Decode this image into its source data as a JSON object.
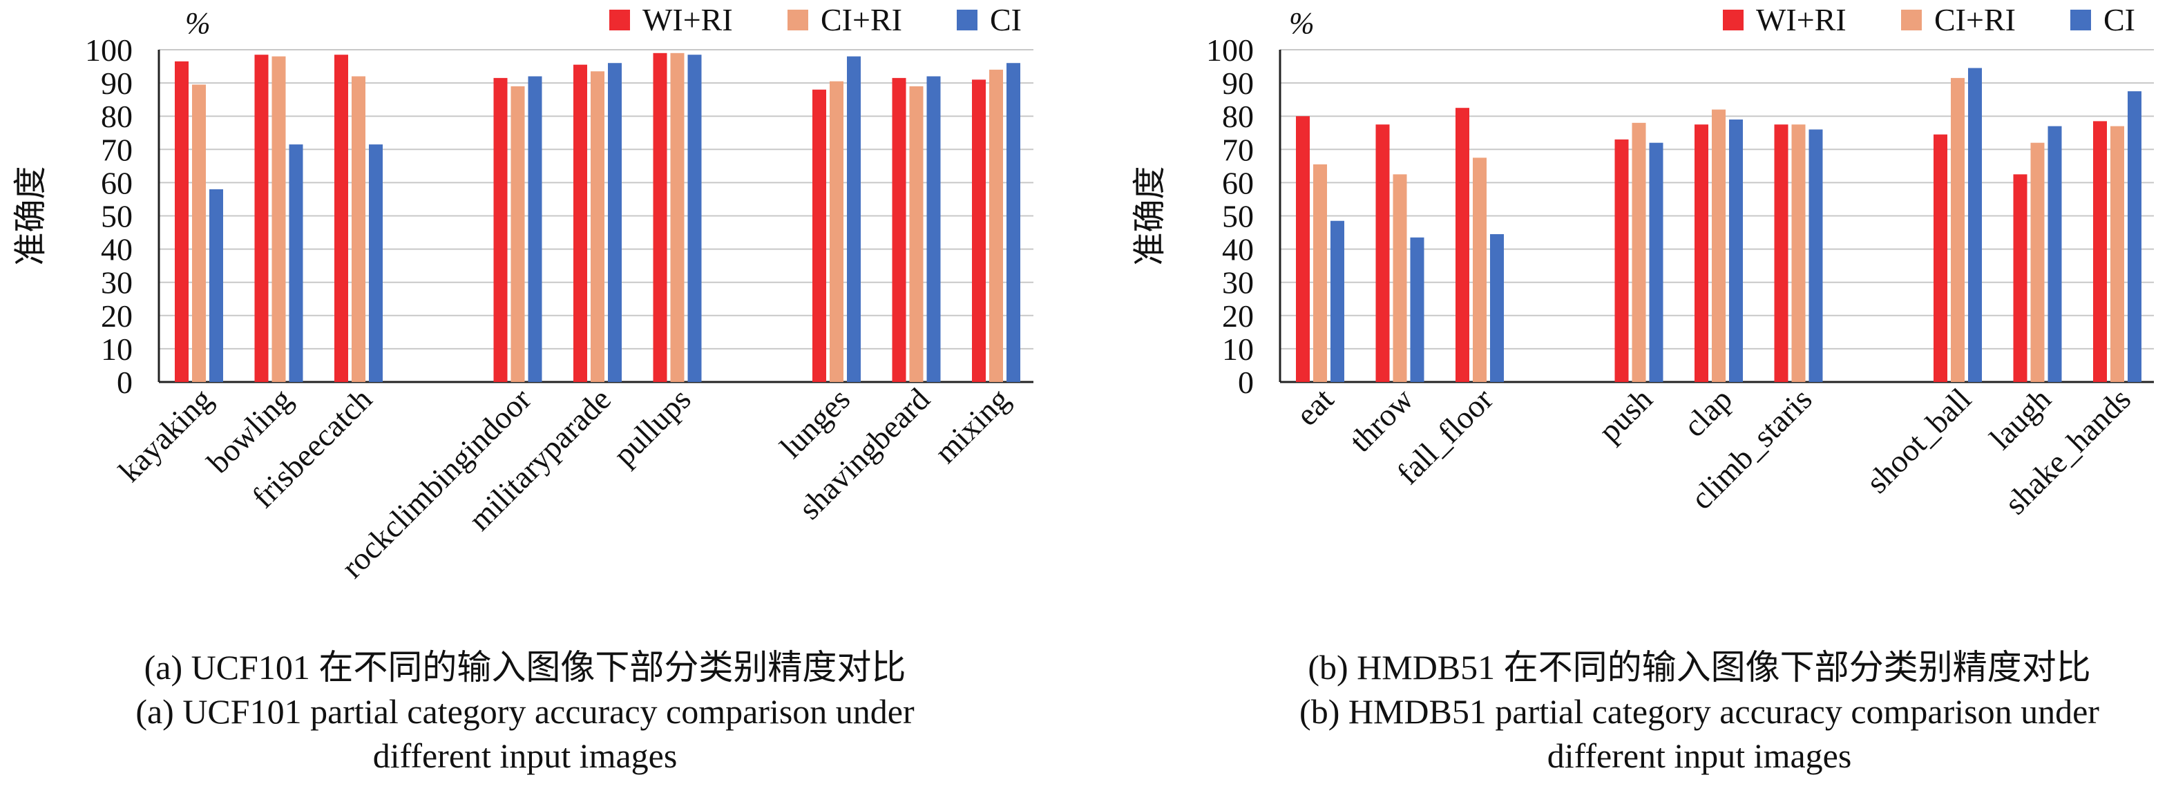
{
  "legend": {
    "entries": [
      {
        "name": "WI+RI",
        "color": "#ee2a2f"
      },
      {
        "name": "CI+RI",
        "color": "#eea17c"
      },
      {
        "name": "CI",
        "color": "#4470c0"
      }
    ],
    "placement": "top-right"
  },
  "axis_text": {
    "unit": "%",
    "ylabel": "准确度"
  },
  "chart_data": [
    {
      "type": "bar",
      "categories": [
        "kayaking",
        "bowling",
        "frisbeecatch",
        "rockclimbingindoor",
        "militaryparade",
        "pullups",
        "lunges",
        "shavingbeard",
        "mixing"
      ],
      "groups": [
        3,
        3,
        3
      ],
      "series": [
        {
          "name": "WI+RI",
          "values": [
            96.5,
            98.5,
            98.5,
            91.5,
            95.5,
            99,
            88,
            91.5,
            91
          ]
        },
        {
          "name": "CI+RI",
          "values": [
            89.5,
            98,
            92,
            89,
            93.5,
            99,
            90.5,
            89,
            94
          ]
        },
        {
          "name": "CI",
          "values": [
            58,
            71.5,
            71.5,
            92,
            96,
            98.5,
            98,
            92,
            96
          ]
        }
      ],
      "ylim": [
        0,
        100
      ],
      "yticks": [
        0,
        10,
        20,
        30,
        40,
        50,
        60,
        70,
        80,
        90,
        100
      ],
      "ylabel": "准确度",
      "unit": "%",
      "grid": true,
      "caption_lines": [
        "(a) UCF101 在不同的输入图像下部分类别精度对比",
        "(a) UCF101 partial category accuracy comparison under",
        "different input images"
      ]
    },
    {
      "type": "bar",
      "categories": [
        "eat",
        "throw",
        "fall_floor",
        "push",
        "clap",
        "climb_staris",
        "shoot_ball",
        "laugh",
        "shake_hands"
      ],
      "groups": [
        3,
        3,
        3
      ],
      "series": [
        {
          "name": "WI+RI",
          "values": [
            80,
            77.5,
            82.5,
            73,
            77.5,
            77.5,
            74.5,
            62.5,
            78.5
          ]
        },
        {
          "name": "CI+RI",
          "values": [
            65.5,
            62.5,
            67.5,
            78,
            82,
            77.5,
            91.5,
            72,
            77
          ]
        },
        {
          "name": "CI",
          "values": [
            48.5,
            43.5,
            44.5,
            72,
            79,
            76,
            94.5,
            77,
            87.5
          ]
        }
      ],
      "ylim": [
        0,
        100
      ],
      "yticks": [
        0,
        10,
        20,
        30,
        40,
        50,
        60,
        70,
        80,
        90,
        100
      ],
      "ylabel": "准确度",
      "unit": "%",
      "grid": true,
      "caption_lines": [
        "(b) HMDB51 在不同的输入图像下部分类别精度对比",
        "(b) HMDB51 partial category accuracy comparison under",
        "different input images"
      ]
    }
  ]
}
